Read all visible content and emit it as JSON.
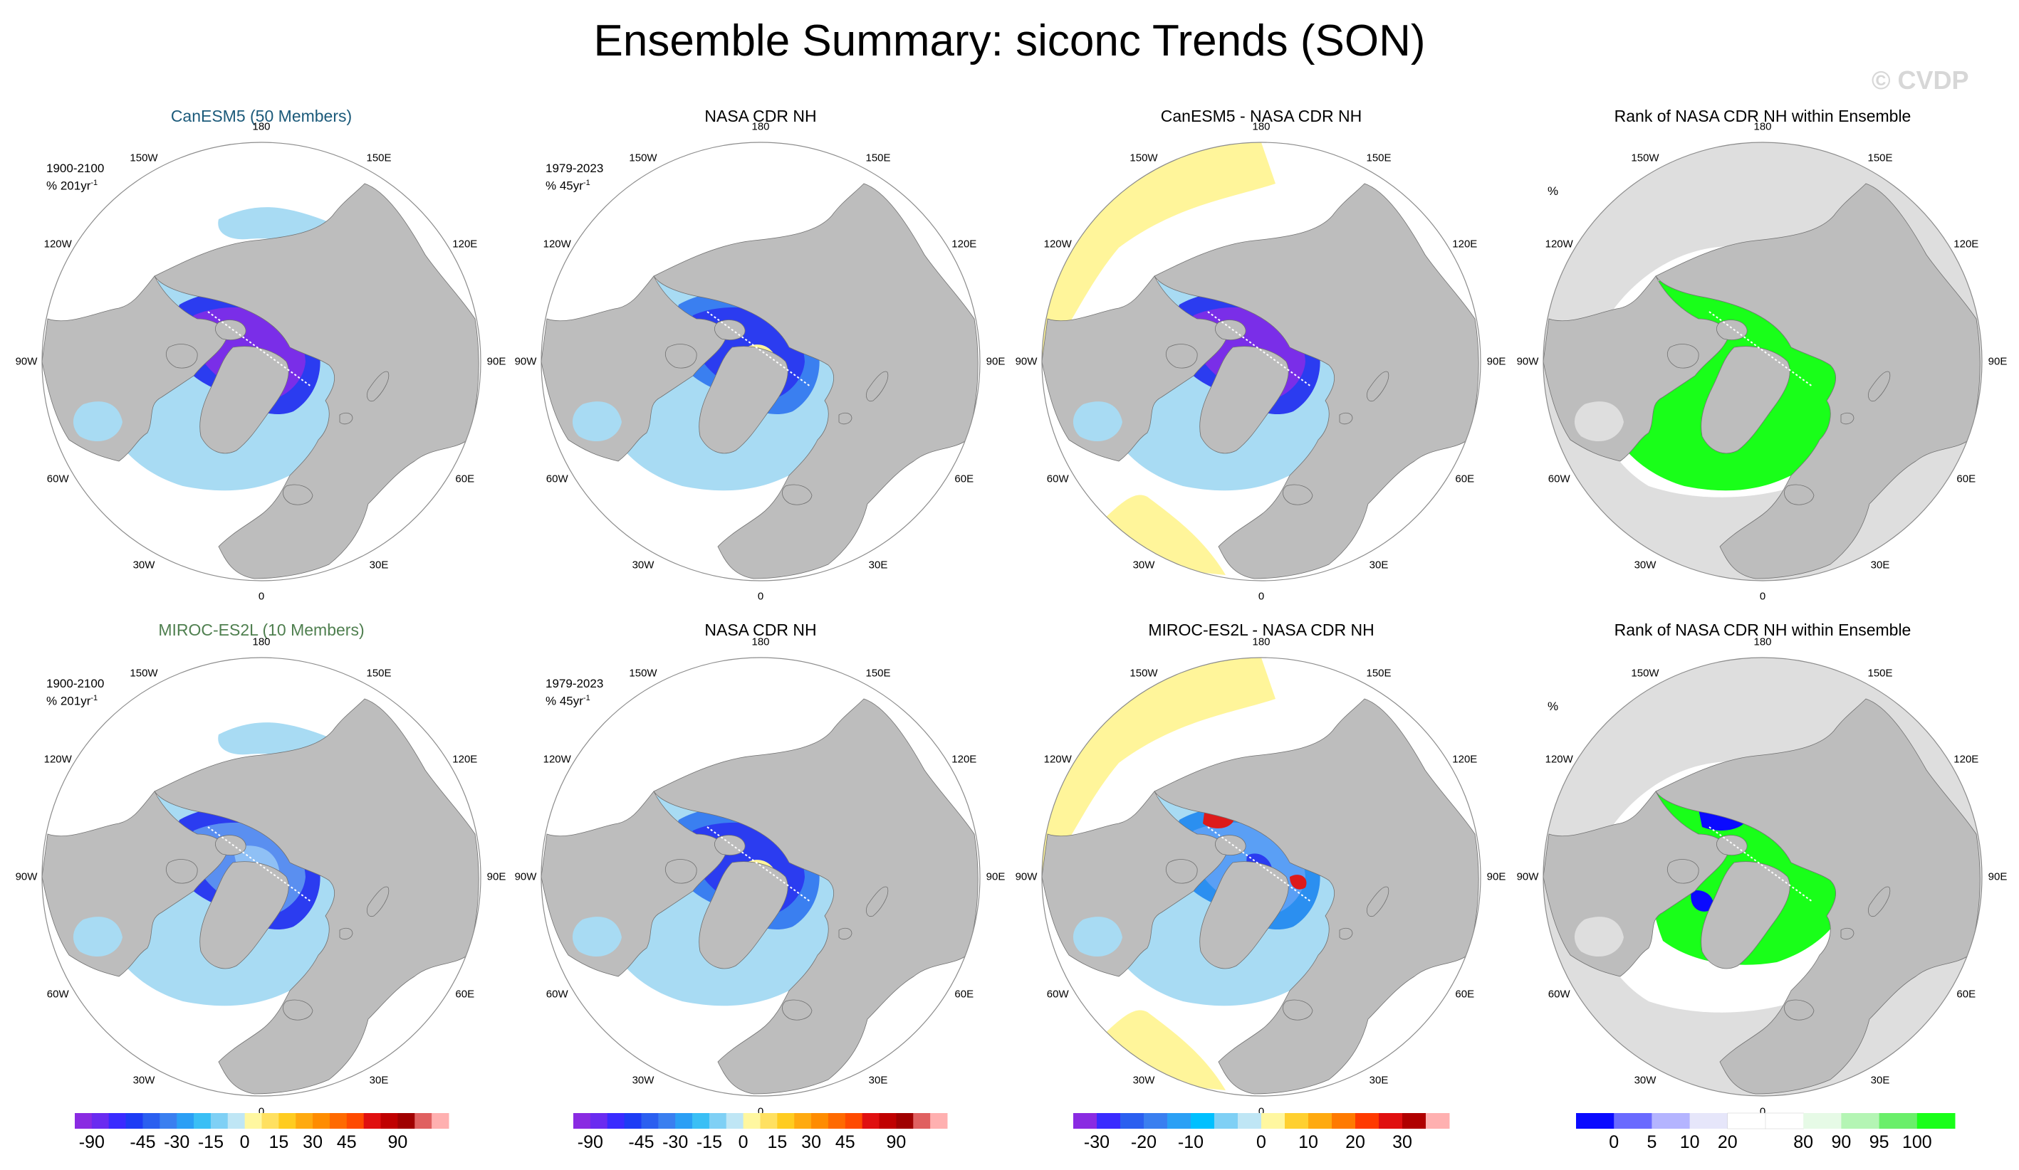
{
  "title": "Ensemble Summary: siconc Trends (SON)",
  "watermark": "© CVDP",
  "lon_labels": [
    "180",
    "150E",
    "120E",
    "90E",
    "60E",
    "30E",
    "0",
    "30W",
    "60W",
    "90W",
    "120W",
    "150W"
  ],
  "colors": {
    "land": "#bdbdbd",
    "ocean": "#ffffff",
    "rank_ocean": "#dedede",
    "rank_green": "#19ff19",
    "rank_blue": "#0a0aff",
    "neg_deep": "#7a2ee8",
    "neg_blue": "#2b3cf0",
    "neg_light": "#a8dbf3",
    "pos_light": "#fff59a",
    "pos_orange": "#f7a21a",
    "pos_red": "#dd1a1a"
  },
  "panels": [
    {
      "title": "CanESM5 (50 Members)",
      "title_color": "#1b5a7a",
      "info": [
        "1900-2100",
        "% 201yr",
        "-1"
      ],
      "style": "trend_strong"
    },
    {
      "title": "NASA CDR NH",
      "title_color": "#000000",
      "info": [
        "1979-2023",
        "% 45yr",
        "-1"
      ],
      "style": "trend_obs"
    },
    {
      "title": "CanESM5 - NASA CDR NH",
      "title_color": "#000000",
      "info": null,
      "style": "diff_strong"
    },
    {
      "title": "Rank of NASA CDR NH within Ensemble",
      "title_color": "#000000",
      "info": [
        "%",
        "",
        ""
      ],
      "style": "rank_green"
    },
    {
      "title": "MIROC-ES2L (10 Members)",
      "title_color": "#4f7f4f",
      "info": [
        "1900-2100",
        "% 201yr",
        "-1"
      ],
      "style": "trend_moderate"
    },
    {
      "title": "NASA CDR NH",
      "title_color": "#000000",
      "info": [
        "1979-2023",
        "% 45yr",
        "-1"
      ],
      "style": "trend_obs"
    },
    {
      "title": "MIROC-ES2L - NASA CDR NH",
      "title_color": "#000000",
      "info": null,
      "style": "diff_mixed"
    },
    {
      "title": "Rank of NASA CDR NH within Ensemble",
      "title_color": "#000000",
      "info": [
        "%",
        "",
        ""
      ],
      "style": "rank_mixed"
    }
  ],
  "colorbars": [
    {
      "name": "trend-colorbar-1",
      "colors": [
        "#8a2be2",
        "#6a2bf0",
        "#3a2bff",
        "#1e3cf5",
        "#2b5ff0",
        "#3a7ff0",
        "#2b9ff5",
        "#3abff5",
        "#7fd0f5",
        "#bfe6f5",
        "#fff7a0",
        "#ffe060",
        "#ffcc20",
        "#ffaa10",
        "#ff8c00",
        "#ff6a00",
        "#ff4a00",
        "#e01010",
        "#c00000",
        "#a00000",
        "#e06060",
        "#ffb0b0"
      ],
      "labels": [
        "-90",
        "-45",
        "-30",
        "-15",
        "0",
        "15",
        "30",
        "45",
        "90"
      ],
      "label_idx": [
        1,
        4,
        6,
        8,
        10,
        12,
        14,
        16,
        19
      ]
    },
    {
      "name": "trend-colorbar-2",
      "colors": [
        "#8a2be2",
        "#6a2bf0",
        "#3a2bff",
        "#1e3cf5",
        "#2b5ff0",
        "#3a7ff0",
        "#2b9ff5",
        "#3abff5",
        "#7fd0f5",
        "#bfe6f5",
        "#fff7a0",
        "#ffe060",
        "#ffcc20",
        "#ffaa10",
        "#ff8c00",
        "#ff6a00",
        "#ff4a00",
        "#e01010",
        "#c00000",
        "#a00000",
        "#e06060",
        "#ffb0b0"
      ],
      "labels": [
        "-90",
        "-45",
        "-30",
        "-15",
        "0",
        "15",
        "30",
        "45",
        "90"
      ],
      "label_idx": [
        1,
        4,
        6,
        8,
        10,
        12,
        14,
        16,
        19
      ]
    },
    {
      "name": "diff-colorbar",
      "colors": [
        "#8a2be2",
        "#3a2bff",
        "#2b5ff0",
        "#3a7ff0",
        "#2ba0f5",
        "#00c0ff",
        "#7fd0f5",
        "#bfe6f5",
        "#fff7a0",
        "#ffd030",
        "#ffaa10",
        "#ff7a00",
        "#ff3a00",
        "#e01010",
        "#b00000",
        "#ffb0b0"
      ],
      "labels": [
        "-30",
        "-20",
        "-10",
        "0",
        "10",
        "20",
        "30"
      ],
      "label_idx": [
        1,
        3,
        5,
        8,
        10,
        12,
        14
      ]
    },
    {
      "name": "rank-colorbar",
      "colors": [
        "#0a0aff",
        "#6a6aff",
        "#b4b4ff",
        "#e6e6fa",
        "#ffffff",
        "#ffffff",
        "#e6fae6",
        "#b4f5b4",
        "#6aef6a",
        "#19ff19"
      ],
      "labels": [
        "0",
        "5",
        "10",
        "20",
        "80",
        "90",
        "95",
        "100"
      ],
      "label_idx": [
        1,
        2,
        3,
        4,
        6,
        7,
        8,
        9
      ]
    }
  ]
}
